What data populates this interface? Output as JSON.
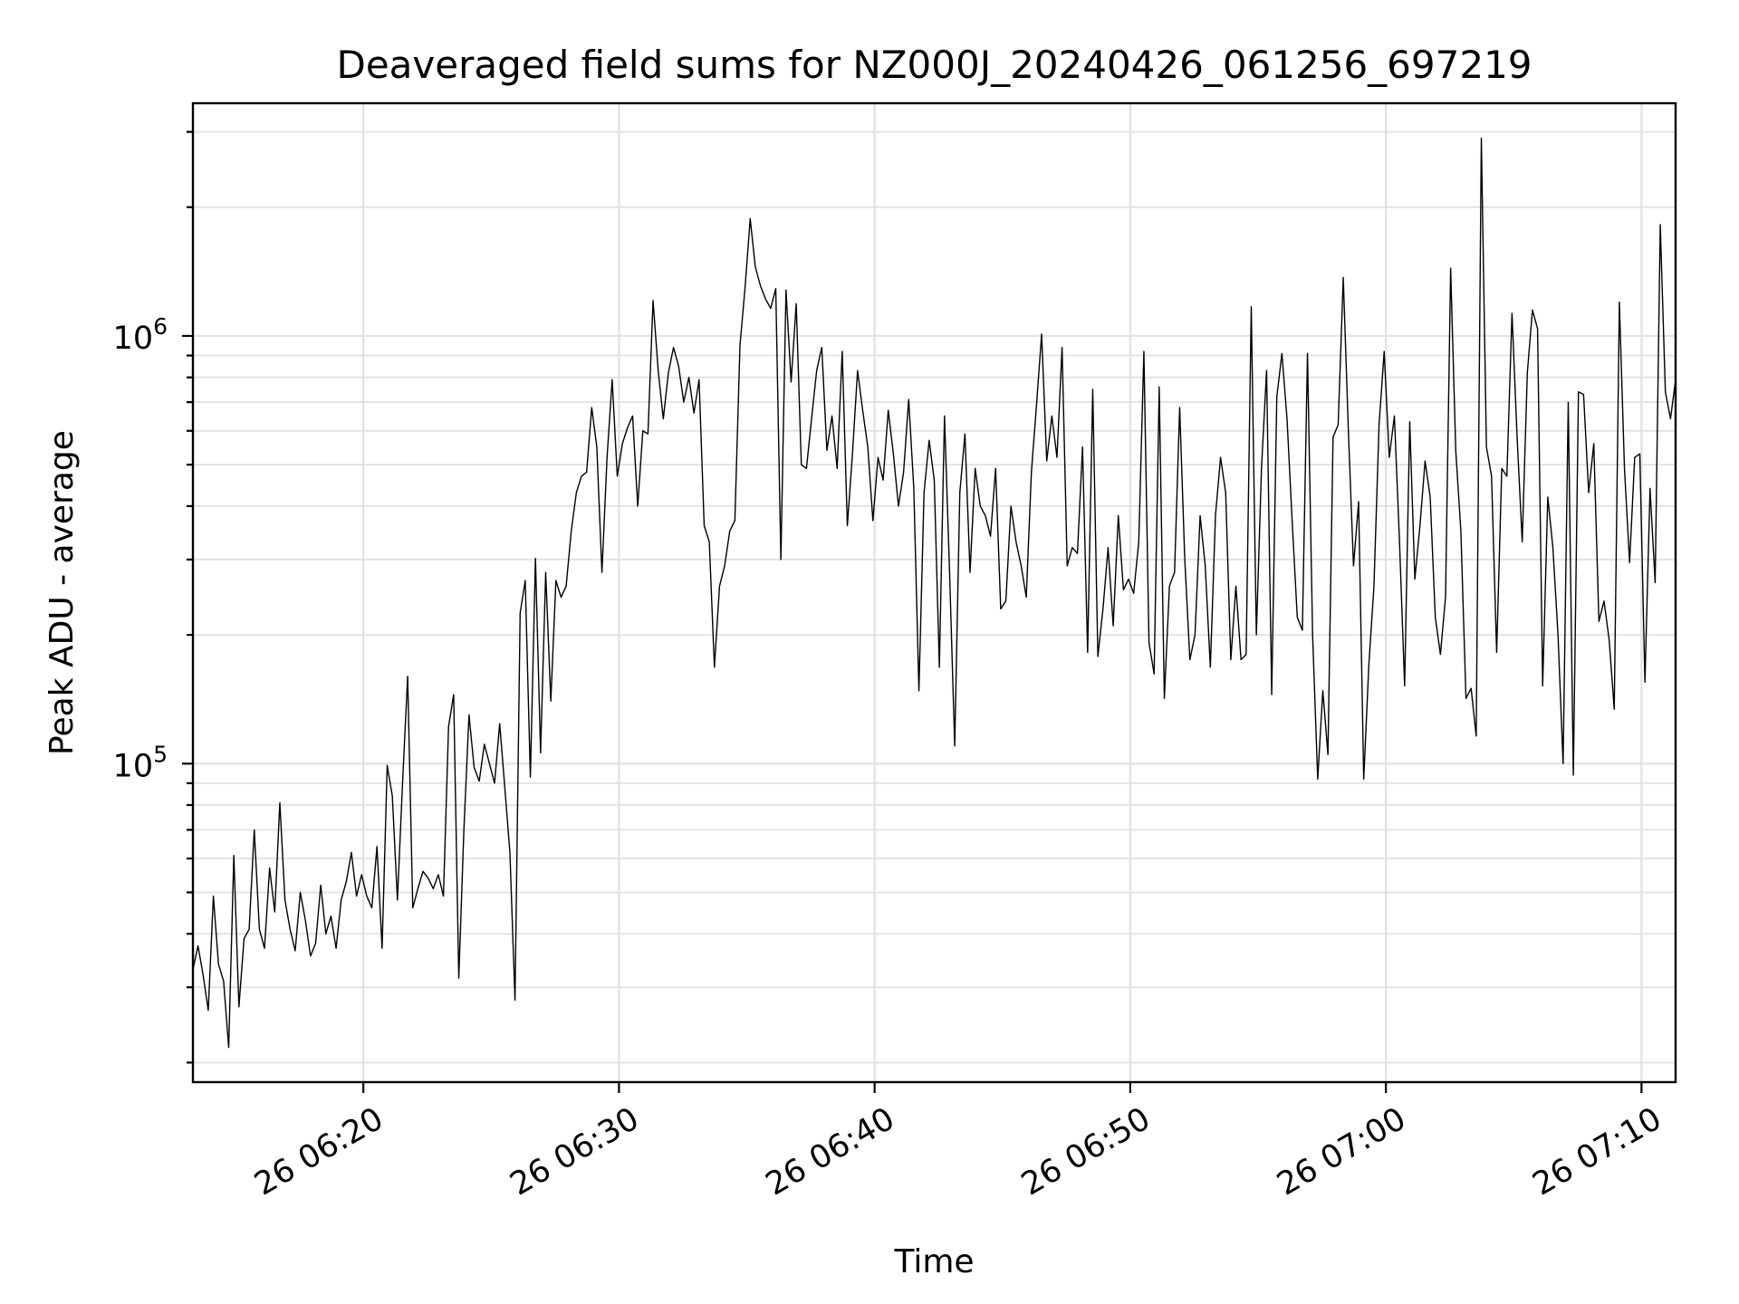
{
  "chart_data": {
    "type": "line",
    "title": "Deaveraged field sums for NZ000J_20240426_061256_697219",
    "xlabel": "Time",
    "ylabel": "Peak ADU - average",
    "yscale": "log",
    "grid": true,
    "line_color": "#000000",
    "xlim": [
      "06:13:20",
      "07:11:20"
    ],
    "ylim": [
      18000,
      3500000
    ],
    "x_ticks": [
      {
        "time": "06:20",
        "label": "26 06:20"
      },
      {
        "time": "06:30",
        "label": "26 06:30"
      },
      {
        "time": "06:40",
        "label": "26 06:40"
      },
      {
        "time": "06:50",
        "label": "26 06:50"
      },
      {
        "time": "07:00",
        "label": "26 07:00"
      },
      {
        "time": "07:10",
        "label": "26 07:10"
      }
    ],
    "y_ticks": [
      {
        "value": 100000,
        "base": "10",
        "exp": "5"
      },
      {
        "value": 1000000,
        "base": "10",
        "exp": "6"
      }
    ],
    "x_start": "06:13:20",
    "x_end": "07:11:20",
    "values": [
      33000,
      37500,
      32000,
      26500,
      49000,
      34000,
      31000,
      21700,
      61000,
      27000,
      39000,
      41000,
      70000,
      41000,
      37000,
      57000,
      45000,
      81000,
      48000,
      41000,
      36500,
      50000,
      43000,
      35500,
      38000,
      52000,
      40000,
      44000,
      37000,
      48000,
      53000,
      62000,
      49000,
      55000,
      49000,
      46000,
      64000,
      37000,
      99000,
      84000,
      48000,
      90000,
      160000,
      46000,
      51000,
      56000,
      54000,
      51000,
      55000,
      49000,
      122000,
      145000,
      31500,
      70000,
      130000,
      98000,
      91000,
      111000,
      100000,
      90000,
      124000,
      88000,
      62000,
      28000,
      225000,
      268000,
      93000,
      302000,
      106000,
      280000,
      140000,
      268000,
      245000,
      260000,
      350000,
      430000,
      470000,
      480000,
      680000,
      550000,
      280000,
      520000,
      790000,
      470000,
      560000,
      610000,
      650000,
      400000,
      600000,
      590000,
      1210000,
      830000,
      640000,
      820000,
      940000,
      850000,
      700000,
      800000,
      660000,
      790000,
      360000,
      330000,
      168000,
      260000,
      290000,
      350000,
      370000,
      950000,
      1300000,
      1880000,
      1450000,
      1310000,
      1220000,
      1160000,
      1290000,
      300000,
      1280000,
      780000,
      1190000,
      500000,
      490000,
      640000,
      830000,
      940000,
      540000,
      650000,
      490000,
      920000,
      360000,
      530000,
      830000,
      670000,
      550000,
      370000,
      520000,
      460000,
      670000,
      530000,
      400000,
      480000,
      710000,
      440000,
      148000,
      430000,
      570000,
      460000,
      168000,
      650000,
      280000,
      110000,
      430000,
      590000,
      280000,
      490000,
      400000,
      380000,
      340000,
      490000,
      230000,
      240000,
      400000,
      330000,
      290000,
      245000,
      480000,
      690000,
      1010000,
      510000,
      650000,
      520000,
      940000,
      290000,
      320000,
      310000,
      550000,
      182000,
      750000,
      178000,
      230000,
      320000,
      210000,
      380000,
      255000,
      270000,
      250000,
      330000,
      920000,
      192000,
      162000,
      760000,
      142000,
      260000,
      280000,
      680000,
      300000,
      175000,
      200000,
      380000,
      290000,
      168000,
      380000,
      520000,
      430000,
      175000,
      260000,
      175000,
      180000,
      1170000,
      200000,
      490000,
      830000,
      145000,
      720000,
      910000,
      640000,
      370000,
      220000,
      205000,
      910000,
      200000,
      92000,
      148000,
      105000,
      580000,
      620000,
      1370000,
      600000,
      290000,
      410000,
      92000,
      170000,
      260000,
      620000,
      920000,
      520000,
      650000,
      330000,
      152000,
      630000,
      270000,
      360000,
      510000,
      420000,
      220000,
      180000,
      245000,
      1440000,
      540000,
      350000,
      142000,
      150000,
      116000,
      2900000,
      550000,
      470000,
      182000,
      490000,
      470000,
      1130000,
      580000,
      330000,
      820000,
      1150000,
      1040000,
      152000,
      420000,
      320000,
      200000,
      100000,
      700000,
      94000,
      740000,
      730000,
      430000,
      560000,
      215000,
      240000,
      195000,
      134000,
      1200000,
      490000,
      295000,
      520000,
      530000,
      155000,
      440000,
      265000,
      1820000,
      740000,
      640000,
      790000
    ]
  }
}
